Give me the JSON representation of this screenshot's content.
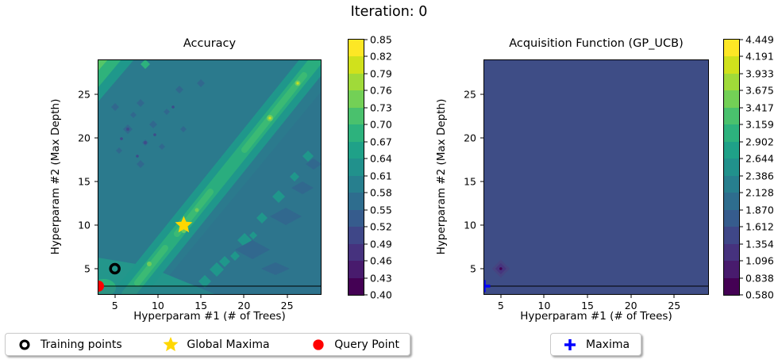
{
  "figure": {
    "title": "Iteration: 0"
  },
  "chart_data": [
    {
      "type": "heatmap",
      "subtype": "filled-contour",
      "title": "Accuracy",
      "xlabel": "Hyperparam #1 (# of Trees)",
      "ylabel": "Hyperparam #2 (Max Depth)",
      "xlim": [
        3,
        29
      ],
      "ylim": [
        2,
        29
      ],
      "xticks": [
        5,
        10,
        15,
        20,
        25
      ],
      "yticks": [
        5,
        10,
        15,
        20,
        25
      ],
      "grid": false,
      "colormap": "viridis",
      "colorbar_ticks": [
        "0.85",
        "0.82",
        "0.79",
        "0.76",
        "0.73",
        "0.70",
        "0.67",
        "0.64",
        "0.61",
        "0.58",
        "0.55",
        "0.52",
        "0.49",
        "0.46",
        "0.43",
        "0.40"
      ],
      "colorbar_range": [
        0.4,
        0.85
      ],
      "colorbar_colors": [
        "#fde725",
        "#d0e11c",
        "#a0da39",
        "#73d056",
        "#4ac16d",
        "#2db27d",
        "#1fa188",
        "#21918c",
        "#277f8e",
        "#2e6d8e",
        "#365c8d",
        "#3f4788",
        "#46327e",
        "#481b6d",
        "#440154"
      ],
      "hline_y": 3,
      "markers": [
        {
          "name": "training-point",
          "shape": "ring",
          "color": "#000000",
          "x": 5,
          "y": 5
        },
        {
          "name": "global-maxima",
          "shape": "star",
          "color": "#ffd700",
          "x": 13,
          "y": 10
        },
        {
          "name": "query-point",
          "shape": "circle",
          "color": "#ff0000",
          "x": 3,
          "y": 3
        }
      ],
      "surface_summary": "teal field around 0.55-0.58 with a green high-accuracy diagonal ridge (~0.70-0.79) running from (4,2) to (29,29), brightest near (13,10) and (23,22); darker ~0.52 patches lower-right and speckles upper-left"
    },
    {
      "type": "heatmap",
      "subtype": "filled-contour",
      "title": "Acquisition Function (GP_UCB)",
      "xlabel": "Hyperparam #1 (# of Trees)",
      "ylabel": "Hyperparam #2 (Max Depth)",
      "xlim": [
        3,
        29
      ],
      "ylim": [
        2,
        29
      ],
      "xticks": [
        5,
        10,
        15,
        20,
        25
      ],
      "yticks": [
        5,
        10,
        15,
        20,
        25
      ],
      "grid": false,
      "colormap": "viridis",
      "colorbar_ticks": [
        "4.449",
        "4.191",
        "3.933",
        "3.675",
        "3.417",
        "3.159",
        "2.902",
        "2.644",
        "2.386",
        "2.128",
        "1.870",
        "1.612",
        "1.354",
        "1.096",
        "0.838",
        "0.580"
      ],
      "colorbar_range": [
        0.58,
        4.449
      ],
      "colorbar_colors": [
        "#fde725",
        "#d0e11c",
        "#a0da39",
        "#73d056",
        "#4ac16d",
        "#2db27d",
        "#1fa188",
        "#21918c",
        "#277f8e",
        "#2e6d8e",
        "#365c8d",
        "#3f4788",
        "#46327e",
        "#481b6d",
        "#440154"
      ],
      "hline_y": 3,
      "markers": [
        {
          "name": "acquisition-dip",
          "shape": "dip",
          "color": "#440154",
          "x": 5,
          "y": 5
        },
        {
          "name": "maxima",
          "shape": "plus",
          "color": "#0000ff",
          "x": 3,
          "y": 3
        }
      ],
      "surface_summary": "nearly uniform dark slate-blue field (~1.6) with a small dark purple dip to ~0.58 at the sampled training point (5,5)"
    }
  ],
  "legends": {
    "left": {
      "items": [
        {
          "label": "Training points",
          "marker": "ring",
          "color": "#000000"
        },
        {
          "label": "Global Maxima",
          "marker": "star",
          "color": "#ffd700"
        },
        {
          "label": "Query Point",
          "marker": "circle",
          "color": "#ff0000"
        }
      ]
    },
    "right": {
      "items": [
        {
          "label": "Maxima",
          "marker": "plus",
          "color": "#0000ff"
        }
      ]
    }
  }
}
